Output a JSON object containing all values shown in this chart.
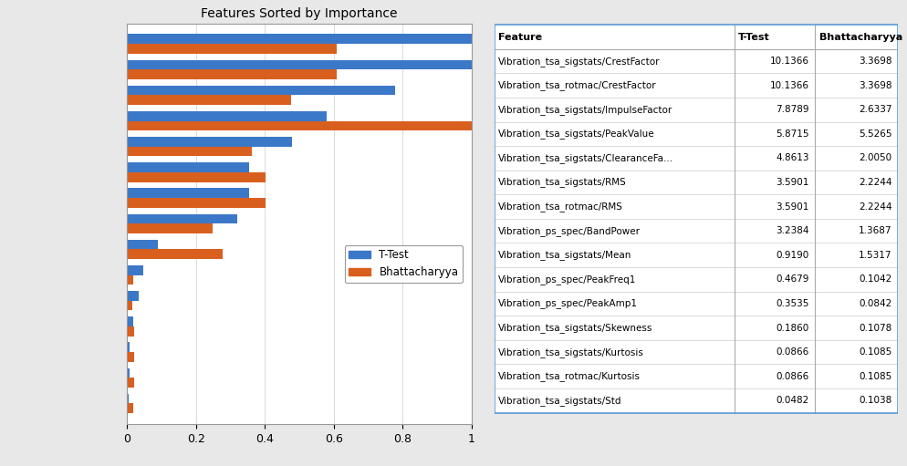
{
  "title": "Features Sorted by Importance",
  "features": [
    "Vibration_tsa_sigstats/CrestFactor",
    "Vibration_tsa_rotmac/CrestFactor",
    "Vibration_tsa_sigstats/ImpulseFactor",
    "Vibration_tsa_sigstats/PeakValue",
    "Vibration_tsa_sigstats/ClearanceFa...",
    "Vibration_tsa_sigstats/RMS",
    "Vibration_tsa_rotmac/RMS",
    "Vibration_ps_spec/BandPower",
    "Vibration_tsa_sigstats/Mean",
    "Vibration_ps_spec/PeakFreq1",
    "Vibration_ps_spec/PeakAmp1",
    "Vibration_tsa_sigstats/Skewness",
    "Vibration_tsa_sigstats/Kurtosis",
    "Vibration_tsa_rotmac/Kurtosis",
    "Vibration_tsa_sigstats/Std"
  ],
  "ttest": [
    10.1366,
    10.1366,
    7.8789,
    5.8715,
    4.8613,
    3.5901,
    3.5901,
    3.2384,
    0.919,
    0.4679,
    0.3535,
    0.186,
    0.0866,
    0.0866,
    0.0482
  ],
  "bhattacharyya": [
    3.3698,
    3.3698,
    2.6337,
    5.5265,
    2.005,
    2.2244,
    2.2244,
    1.3687,
    1.5317,
    0.1042,
    0.0842,
    0.1078,
    0.1085,
    0.1085,
    0.1038
  ],
  "color_ttest": "#3c78c8",
  "color_bhatt": "#d95f1e",
  "table_col_headers": [
    "Feature",
    "T-Test",
    "Bhattacharyya"
  ],
  "xlim": [
    0,
    1
  ],
  "background_color": "#e8e8e8",
  "plot_bg": "#ffffff",
  "legend_labels": [
    "T-Test",
    "Bhattacharyya"
  ],
  "bar_height": 0.38,
  "title_fontsize": 10
}
